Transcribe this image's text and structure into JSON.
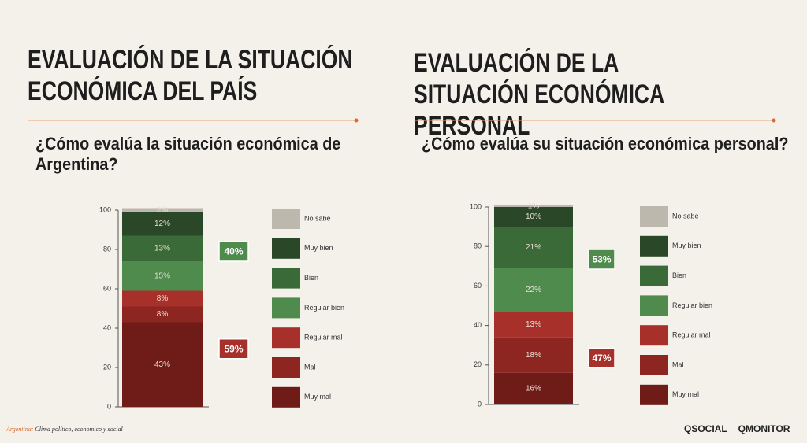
{
  "chart_data": [
    {
      "type": "stacked-bar",
      "title": "EVALUACIÓN DE LA SITUACIÓN ECONÓMICA DEL PAÍS",
      "subtitle": "¿Cómo evalúa la situación económica de Argentina?",
      "categories": [
        null
      ],
      "ylim": [
        0,
        100
      ],
      "yticks": [
        0,
        20,
        40,
        60,
        80,
        100
      ],
      "series": [
        {
          "name": "Muy mal",
          "color": "#6f1b18",
          "values": [
            43
          ],
          "value_labels": [
            "43%"
          ]
        },
        {
          "name": "Mal",
          "color": "#8d2520",
          "values": [
            8
          ],
          "value_labels": [
            "8%"
          ]
        },
        {
          "name": "Regular mal",
          "color": "#a8302a",
          "values": [
            8
          ],
          "value_labels": [
            "8%"
          ]
        },
        {
          "name": "Regular bien",
          "color": "#4e8b4c",
          "values": [
            15
          ],
          "value_labels": [
            "15%"
          ]
        },
        {
          "name": "Bien",
          "color": "#3a6a37",
          "values": [
            13
          ],
          "value_labels": [
            "13%"
          ]
        },
        {
          "name": "Muy bien",
          "color": "#2a4828",
          "values": [
            12
          ],
          "value_labels": [
            "12%"
          ]
        },
        {
          "name": "No sabe",
          "color": "#bdb8ad",
          "values": [
            2
          ],
          "value_labels": [
            "2%"
          ]
        }
      ],
      "groups": [
        {
          "value": 59,
          "label": "59%",
          "color": "#a8302a"
        },
        {
          "value": 40,
          "label": "40%",
          "color": "#4e8b4c"
        }
      ]
    },
    {
      "type": "stacked-bar",
      "title": "EVALUACIÓN DE LA SITUACIÓN ECONÓMICA PERSONAL",
      "subtitle": "¿Cómo evalúa su situación económica personal?",
      "categories": [
        null
      ],
      "ylim": [
        0,
        100
      ],
      "yticks": [
        0,
        20,
        40,
        60,
        80,
        100
      ],
      "series": [
        {
          "name": "Muy mal",
          "color": "#6f1b18",
          "values": [
            16
          ],
          "value_labels": [
            "16%"
          ]
        },
        {
          "name": "Mal",
          "color": "#8d2520",
          "values": [
            18
          ],
          "value_labels": [
            "18%"
          ]
        },
        {
          "name": "Regular mal",
          "color": "#a8302a",
          "values": [
            13
          ],
          "value_labels": [
            "13%"
          ]
        },
        {
          "name": "Regular bien",
          "color": "#4e8b4c",
          "values": [
            22
          ],
          "value_labels": [
            "22%"
          ]
        },
        {
          "name": "Bien",
          "color": "#3a6a37",
          "values": [
            21
          ],
          "value_labels": [
            "21%"
          ]
        },
        {
          "name": "Muy bien",
          "color": "#2a4828",
          "values": [
            10
          ],
          "value_labels": [
            "10%"
          ]
        },
        {
          "name": "No sabe",
          "color": "#bdb8ad",
          "values": [
            1
          ],
          "value_labels": [
            "1%"
          ]
        }
      ],
      "groups": [
        {
          "value": 47,
          "label": "47%",
          "color": "#a8302a"
        },
        {
          "value": 53,
          "label": "53%",
          "color": "#4e8b4c"
        }
      ]
    }
  ],
  "footer": {
    "label": "Argentina:",
    "text": "Clima político, economico y social"
  },
  "logos": [
    "QSOCIAL",
    "QMONITOR"
  ]
}
